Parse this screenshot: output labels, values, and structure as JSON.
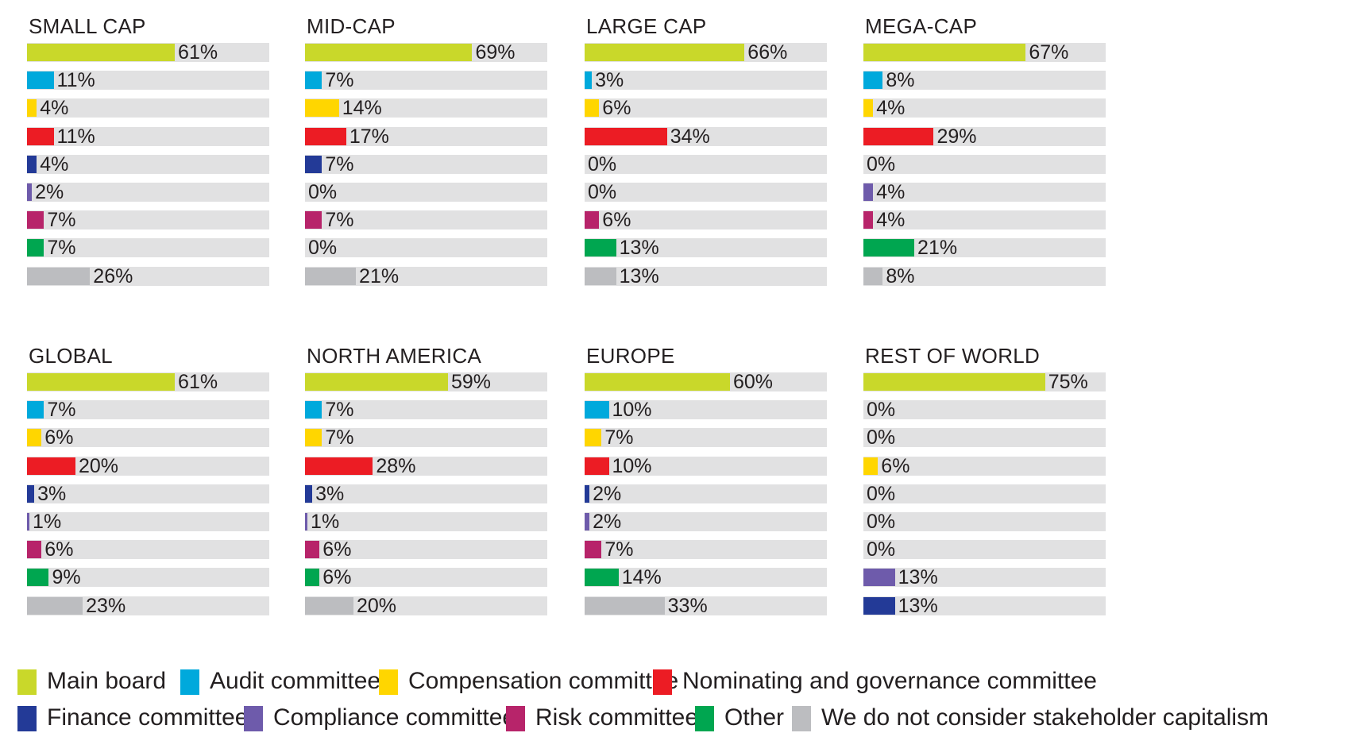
{
  "chart_data": {
    "type": "bar",
    "orientation": "horizontal",
    "categories": [
      "Main board",
      "Audit committee",
      "Compensation committee",
      "Nominating and governance committee",
      "Finance committee",
      "Compliance committee",
      "Risk committee",
      "Other",
      "We do not consider stakeholder capitalism"
    ],
    "colors": [
      "#c9d82a",
      "#00a9dc",
      "#ffd600",
      "#ec1c24",
      "#233a97",
      "#6e5bab",
      "#b7246a",
      "#00a650",
      "#bcbdc0"
    ],
    "xlim": [
      0,
      100
    ],
    "value_suffix": "%",
    "legend_position": "bottom",
    "grid": false,
    "panels": [
      {
        "title": "SMALL CAP",
        "values": [
          61,
          11,
          4,
          11,
          4,
          2,
          7,
          7,
          26
        ]
      },
      {
        "title": "MID-CAP",
        "values": [
          69,
          7,
          14,
          17,
          7,
          0,
          7,
          0,
          21
        ]
      },
      {
        "title": "LARGE CAP",
        "values": [
          66,
          3,
          6,
          34,
          0,
          0,
          6,
          13,
          13
        ]
      },
      {
        "title": "MEGA-CAP",
        "values": [
          67,
          8,
          4,
          29,
          0,
          4,
          4,
          21,
          8
        ]
      },
      {
        "title": "GLOBAL",
        "values": [
          61,
          7,
          6,
          20,
          3,
          1,
          6,
          9,
          23
        ]
      },
      {
        "title": "NORTH AMERICA",
        "values": [
          59,
          7,
          7,
          28,
          3,
          1,
          6,
          6,
          20
        ]
      },
      {
        "title": "EUROPE",
        "values": [
          60,
          10,
          7,
          10,
          2,
          2,
          7,
          14,
          33
        ]
      },
      {
        "title": "REST OF WORLD",
        "values": [
          75,
          0,
          0,
          6,
          0,
          0,
          0,
          13,
          13
        ],
        "colors": [
          "#c9d82a",
          "#00a9dc",
          "#ffd600",
          "#ffd600",
          "#233a97",
          "#6e5bab",
          "#b7246a",
          "#6e5bab",
          "#233a97"
        ]
      }
    ],
    "legend": [
      [
        "Main board",
        "Audit committee",
        "Compensation committee",
        "Nominating and governance committee"
      ],
      [
        "Finance committee",
        "Compliance committee",
        "Risk committee",
        "Other",
        "We do not consider stakeholder capitalism"
      ]
    ]
  }
}
